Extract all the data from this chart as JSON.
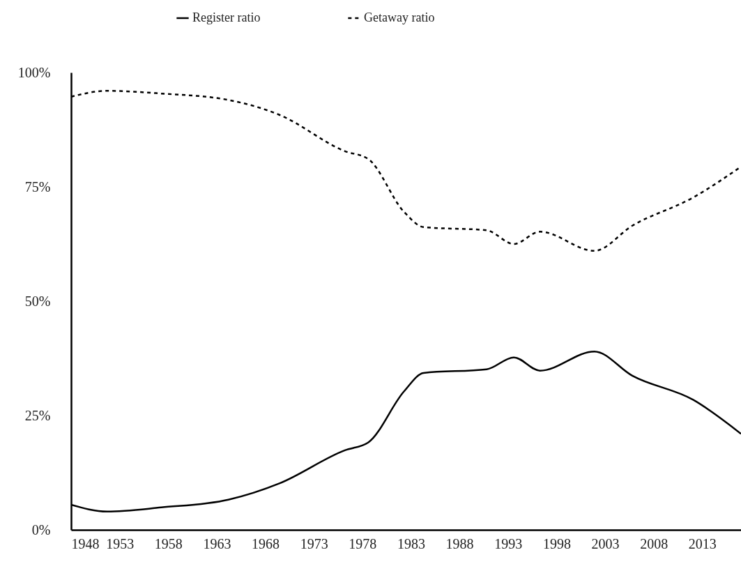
{
  "chart_data": {
    "type": "line",
    "legend": "top",
    "xlim": [
      1948,
      2017
    ],
    "ylim": [
      0,
      100
    ],
    "xticks": [
      1948,
      1953,
      1958,
      1963,
      1968,
      1973,
      1978,
      1983,
      1988,
      1993,
      1998,
      2003,
      2008,
      2013
    ],
    "yticks": [
      {
        "value": 0,
        "label": "0%"
      },
      {
        "value": 25,
        "label": "25%"
      },
      {
        "value": 50,
        "label": "50%"
      },
      {
        "value": 75,
        "label": "75%"
      },
      {
        "value": 100,
        "label": "100%"
      }
    ],
    "x": [
      1948,
      1951.7,
      1957.3,
      1964.2,
      1969.5,
      1976.2,
      1978.6,
      1982.3,
      1984.3,
      1990.8,
      1993.6,
      1996.3,
      2001.9,
      2005.8,
      2012.1,
      2017
    ],
    "series": [
      {
        "name": "Register ratio",
        "color": "#000000",
        "line_style": "solid",
        "values": [
          5.5,
          4.0,
          4.9,
          6.6,
          10.2,
          17.4,
          19.1,
          30.3,
          34.3,
          35.1,
          37.7,
          34.8,
          39.0,
          33.7,
          28.4,
          21.0
        ]
      },
      {
        "name": "Getaway ratio",
        "color": "#000000",
        "line_style": "dashed",
        "values": [
          94.7,
          96.0,
          95.4,
          94.0,
          90.7,
          82.8,
          81.1,
          69.5,
          66.2,
          65.5,
          62.5,
          65.2,
          61.0,
          66.5,
          72.7,
          79.4
        ]
      }
    ]
  }
}
